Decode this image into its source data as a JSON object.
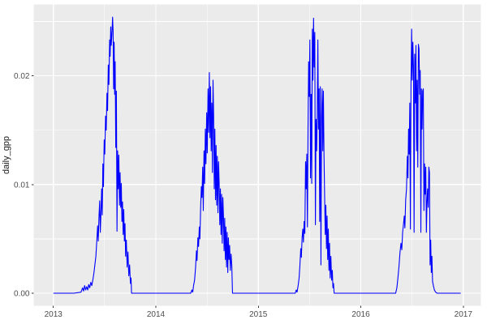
{
  "chart_data": {
    "type": "line",
    "title": "",
    "xlabel": "",
    "ylabel": "daily_gpp",
    "legend": "none",
    "grid": "on",
    "style": {
      "panel_bg": "#EBEBEB",
      "grid_major_color": "#FFFFFF",
      "grid_minor_color": "#FFFFFF",
      "line_color": "#0000FF",
      "tick_mark_color": "#333333",
      "tick_label_color": "#4D4D4D",
      "axis_title_color": "#1A1A1A",
      "outer_bg": "#FFFFFF"
    },
    "x_axis": {
      "range": [
        2012.808,
        2017.172
      ],
      "ticks": [
        {
          "label": "2013",
          "value": 2013
        },
        {
          "label": "2014",
          "value": 2014
        },
        {
          "label": "2015",
          "value": 2015
        },
        {
          "label": "2016",
          "value": 2016
        },
        {
          "label": "2017",
          "value": 2017
        }
      ],
      "minor": [
        2013.5,
        2014.5,
        2015.5,
        2016.5
      ]
    },
    "y_axis": {
      "range": [
        -0.001155,
        0.026565
      ],
      "ticks": [
        {
          "label": "0.00",
          "value": 0
        },
        {
          "label": "0.01",
          "value": 0.01
        },
        {
          "label": "0.02",
          "value": 0.02
        }
      ],
      "minor": [
        0.005,
        0.015,
        0.025
      ]
    },
    "series": [
      {
        "name": "daily_gpp",
        "points": [
          [
            2013.0,
            0
          ],
          [
            2013.1,
            0
          ],
          [
            2013.2,
            0
          ],
          [
            2013.27,
            0.0001
          ],
          [
            2013.285,
            0.0005
          ],
          [
            2013.295,
            0.0002
          ],
          [
            2013.305,
            0.0007
          ],
          [
            2013.315,
            0.0003
          ],
          [
            2013.325,
            0.0006
          ],
          [
            2013.335,
            0.0003
          ],
          [
            2013.345,
            0.0008
          ],
          [
            2013.355,
            0.0005
          ],
          [
            2013.365,
            0.001
          ],
          [
            2013.375,
            0.0007
          ],
          [
            2013.385,
            0.0012
          ],
          [
            2013.395,
            0.0018
          ],
          [
            2013.405,
            0.0026
          ],
          [
            2013.415,
            0.0034
          ],
          [
            2013.425,
            0.005
          ],
          [
            2013.432,
            0.0062
          ],
          [
            2013.438,
            0.0048
          ],
          [
            2013.445,
            0.007
          ],
          [
            2013.452,
            0.0085
          ],
          [
            2013.458,
            0.0056
          ],
          [
            2013.465,
            0.0075
          ],
          [
            2013.471,
            0.0096
          ],
          [
            2013.477,
            0.0072
          ],
          [
            2013.483,
            0.0119
          ],
          [
            2013.489,
            0.0098
          ],
          [
            2013.496,
            0.0141
          ],
          [
            2013.502,
            0.0128
          ],
          [
            2013.509,
            0.0163
          ],
          [
            2013.516,
            0.015
          ],
          [
            2013.523,
            0.0184
          ],
          [
            2013.529,
            0.0168
          ],
          [
            2013.536,
            0.021
          ],
          [
            2013.542,
            0.0192
          ],
          [
            2013.549,
            0.0233
          ],
          [
            2013.554,
            0.0218
          ],
          [
            2013.56,
            0.0245
          ],
          [
            2013.565,
            0.0228
          ],
          [
            2013.572,
            0.024
          ],
          [
            2013.578,
            0.0254
          ],
          [
            2013.583,
            0.0241
          ],
          [
            2013.588,
            0.0188
          ],
          [
            2013.593,
            0.0231
          ],
          [
            2013.598,
            0.0183
          ],
          [
            2013.603,
            0.0213
          ],
          [
            2013.609,
            0.0134
          ],
          [
            2013.615,
            0.0186
          ],
          [
            2013.621,
            0.0057
          ],
          [
            2013.627,
            0.0131
          ],
          [
            2013.633,
            0.0096
          ],
          [
            2013.639,
            0.0127
          ],
          [
            2013.645,
            0.0081
          ],
          [
            2013.651,
            0.0111
          ],
          [
            2013.657,
            0.0079
          ],
          [
            2013.663,
            0.0101
          ],
          [
            2013.669,
            0.0066
          ],
          [
            2013.675,
            0.0084
          ],
          [
            2013.681,
            0.0054
          ],
          [
            2013.687,
            0.0077
          ],
          [
            2013.693,
            0.0048
          ],
          [
            2013.699,
            0.0064
          ],
          [
            2013.705,
            0.0034
          ],
          [
            2013.712,
            0.0049
          ],
          [
            2013.72,
            0.0024
          ],
          [
            2013.728,
            0.0038
          ],
          [
            2013.736,
            0.0016
          ],
          [
            2013.744,
            0.0026
          ],
          [
            2013.752,
            0.0009
          ],
          [
            2013.758,
            0.0014
          ],
          [
            2013.763,
            0
          ],
          [
            2013.9,
            0
          ],
          [
            2014.1,
            0
          ],
          [
            2014.34,
            0
          ],
          [
            2014.352,
            0.0003
          ],
          [
            2014.36,
            0.0001
          ],
          [
            2014.368,
            0.0007
          ],
          [
            2014.378,
            0.0012
          ],
          [
            2014.388,
            0.0024
          ],
          [
            2014.396,
            0.0039
          ],
          [
            2014.402,
            0.003
          ],
          [
            2014.41,
            0.0051
          ],
          [
            2014.417,
            0.0043
          ],
          [
            2014.424,
            0.0061
          ],
          [
            2014.43,
            0.005
          ],
          [
            2014.437,
            0.0078
          ],
          [
            2014.444,
            0.0098
          ],
          [
            2014.45,
            0.0088
          ],
          [
            2014.457,
            0.0116
          ],
          [
            2014.463,
            0.0076
          ],
          [
            2014.47,
            0.0131
          ],
          [
            2014.476,
            0.0101
          ],
          [
            2014.483,
            0.0151
          ],
          [
            2014.489,
            0.0119
          ],
          [
            2014.496,
            0.0166
          ],
          [
            2014.502,
            0.0129
          ],
          [
            2014.509,
            0.0188
          ],
          [
            2014.515,
            0.0148
          ],
          [
            2014.522,
            0.0203
          ],
          [
            2014.528,
            0.0143
          ],
          [
            2014.534,
            0.019
          ],
          [
            2014.54,
            0.0131
          ],
          [
            2014.546,
            0.0175
          ],
          [
            2014.552,
            0.0111
          ],
          [
            2014.558,
            0.0196
          ],
          [
            2014.564,
            0.0163
          ],
          [
            2014.57,
            0.0096
          ],
          [
            2014.576,
            0.0151
          ],
          [
            2014.582,
            0.0086
          ],
          [
            2014.588,
            0.0136
          ],
          [
            2014.594,
            0.0081
          ],
          [
            2014.6,
            0.0126
          ],
          [
            2014.606,
            0.0074
          ],
          [
            2014.612,
            0.0121
          ],
          [
            2014.618,
            0.0101
          ],
          [
            2014.624,
            0.0063
          ],
          [
            2014.63,
            0.0096
          ],
          [
            2014.636,
            0.0054
          ],
          [
            2014.642,
            0.0091
          ],
          [
            2014.648,
            0.0046
          ],
          [
            2014.654,
            0.0088
          ],
          [
            2014.66,
            0.0071
          ],
          [
            2014.666,
            0.0039
          ],
          [
            2014.672,
            0.0069
          ],
          [
            2014.678,
            0.0031
          ],
          [
            2014.684,
            0.0061
          ],
          [
            2014.69,
            0.0024
          ],
          [
            2014.696,
            0.0056
          ],
          [
            2014.702,
            0.0019
          ],
          [
            2014.708,
            0.0051
          ],
          [
            2014.714,
            0.0031
          ],
          [
            2014.72,
            0.0044
          ],
          [
            2014.727,
            0.0021
          ],
          [
            2014.734,
            0.0036
          ],
          [
            2014.741,
            0.0026
          ],
          [
            2014.748,
            0
          ],
          [
            2014.9,
            0
          ],
          [
            2015.1,
            0
          ],
          [
            2015.36,
            0
          ],
          [
            2015.37,
            0.0003
          ],
          [
            2015.378,
            0.0001
          ],
          [
            2015.39,
            0.0008
          ],
          [
            2015.398,
            0.0014
          ],
          [
            2015.406,
            0.0026
          ],
          [
            2015.414,
            0.0041
          ],
          [
            2015.42,
            0.0033
          ],
          [
            2015.427,
            0.0051
          ],
          [
            2015.434,
            0.0059
          ],
          [
            2015.44,
            0.0047
          ],
          [
            2015.447,
            0.0066
          ],
          [
            2015.454,
            0.0055
          ],
          [
            2015.461,
            0.0121
          ],
          [
            2015.467,
            0.0096
          ],
          [
            2015.473,
            0.0128
          ],
          [
            2015.479,
            0.0061
          ],
          [
            2015.485,
            0.0151
          ],
          [
            2015.491,
            0.0213
          ],
          [
            2015.497,
            0.0181
          ],
          [
            2015.503,
            0.0233
          ],
          [
            2015.509,
            0.0106
          ],
          [
            2015.515,
            0.0183
          ],
          [
            2015.521,
            0.0101
          ],
          [
            2015.527,
            0.0243
          ],
          [
            2015.533,
            0.0196
          ],
          [
            2015.539,
            0.0253
          ],
          [
            2015.545,
            0.0208
          ],
          [
            2015.551,
            0.024
          ],
          [
            2015.557,
            0.0063
          ],
          [
            2015.563,
            0.016
          ],
          [
            2015.569,
            0.0131
          ],
          [
            2015.575,
            0.0163
          ],
          [
            2015.581,
            0.0233
          ],
          [
            2015.587,
            0.0151
          ],
          [
            2015.593,
            0.0188
          ],
          [
            2015.599,
            0.0066
          ],
          [
            2015.605,
            0.019
          ],
          [
            2015.611,
            0.0026
          ],
          [
            2015.617,
            0.0162
          ],
          [
            2015.623,
            0.0188
          ],
          [
            2015.629,
            0.0131
          ],
          [
            2015.635,
            0.0186
          ],
          [
            2015.641,
            0.0126
          ],
          [
            2015.647,
            0.0089
          ],
          [
            2015.653,
            0.0054
          ],
          [
            2015.659,
            0.0081
          ],
          [
            2015.665,
            0.0041
          ],
          [
            2015.671,
            0.0071
          ],
          [
            2015.677,
            0.0031
          ],
          [
            2015.683,
            0.0059
          ],
          [
            2015.689,
            0.0021
          ],
          [
            2015.695,
            0.0046
          ],
          [
            2015.701,
            0.0014
          ],
          [
            2015.708,
            0.0034
          ],
          [
            2015.715,
            0.0012
          ],
          [
            2015.722,
            0.0021
          ],
          [
            2015.728,
            0.0005
          ],
          [
            2015.734,
            0.0009
          ],
          [
            2015.74,
            0
          ],
          [
            2015.9,
            0
          ],
          [
            2016.1,
            0
          ],
          [
            2016.34,
            0
          ],
          [
            2016.352,
            0.0005
          ],
          [
            2016.362,
            0.0014
          ],
          [
            2016.372,
            0.0024
          ],
          [
            2016.382,
            0.0037
          ],
          [
            2016.392,
            0.0046
          ],
          [
            2016.4,
            0.004
          ],
          [
            2016.408,
            0.0056
          ],
          [
            2016.416,
            0.0063
          ],
          [
            2016.424,
            0.0071
          ],
          [
            2016.43,
            0.006
          ],
          [
            2016.438,
            0.0086
          ],
          [
            2016.446,
            0.0096
          ],
          [
            2016.454,
            0.0126
          ],
          [
            2016.46,
            0.0106
          ],
          [
            2016.466,
            0.0151
          ],
          [
            2016.472,
            0.0128
          ],
          [
            2016.478,
            0.0175
          ],
          [
            2016.484,
            0.0059
          ],
          [
            2016.49,
            0.0193
          ],
          [
            2016.496,
            0.0243
          ],
          [
            2016.502,
            0.0196
          ],
          [
            2016.508,
            0.0231
          ],
          [
            2016.514,
            0.0208
          ],
          [
            2016.52,
            0.0056
          ],
          [
            2016.526,
            0.022
          ],
          [
            2016.532,
            0.0175
          ],
          [
            2016.538,
            0.0228
          ],
          [
            2016.544,
            0.0131
          ],
          [
            2016.55,
            0.0196
          ],
          [
            2016.556,
            0.0116
          ],
          [
            2016.562,
            0.0229
          ],
          [
            2016.568,
            0.0225
          ],
          [
            2016.574,
            0.0183
          ],
          [
            2016.58,
            0.0205
          ],
          [
            2016.586,
            0.0056
          ],
          [
            2016.592,
            0.0188
          ],
          [
            2016.598,
            0.0151
          ],
          [
            2016.604,
            0.0186
          ],
          [
            2016.61,
            0.0188
          ],
          [
            2016.616,
            0.0076
          ],
          [
            2016.622,
            0.0119
          ],
          [
            2016.628,
            0.0091
          ],
          [
            2016.634,
            0.0116
          ],
          [
            2016.64,
            0.0056
          ],
          [
            2016.646,
            0.0084
          ],
          [
            2016.652,
            0.0096
          ],
          [
            2016.658,
            0.0079
          ],
          [
            2016.664,
            0.0116
          ],
          [
            2016.67,
            0.0111
          ],
          [
            2016.676,
            0.0026
          ],
          [
            2016.682,
            0.0049
          ],
          [
            2016.688,
            0.0019
          ],
          [
            2016.694,
            0.0034
          ],
          [
            2016.7,
            0.0011
          ],
          [
            2016.708,
            0.0007
          ],
          [
            2016.718,
            0.0003
          ],
          [
            2016.73,
            0.0001
          ],
          [
            2016.745,
            0
          ],
          [
            2016.85,
            0
          ],
          [
            2016.975,
            0
          ]
        ]
      }
    ]
  }
}
